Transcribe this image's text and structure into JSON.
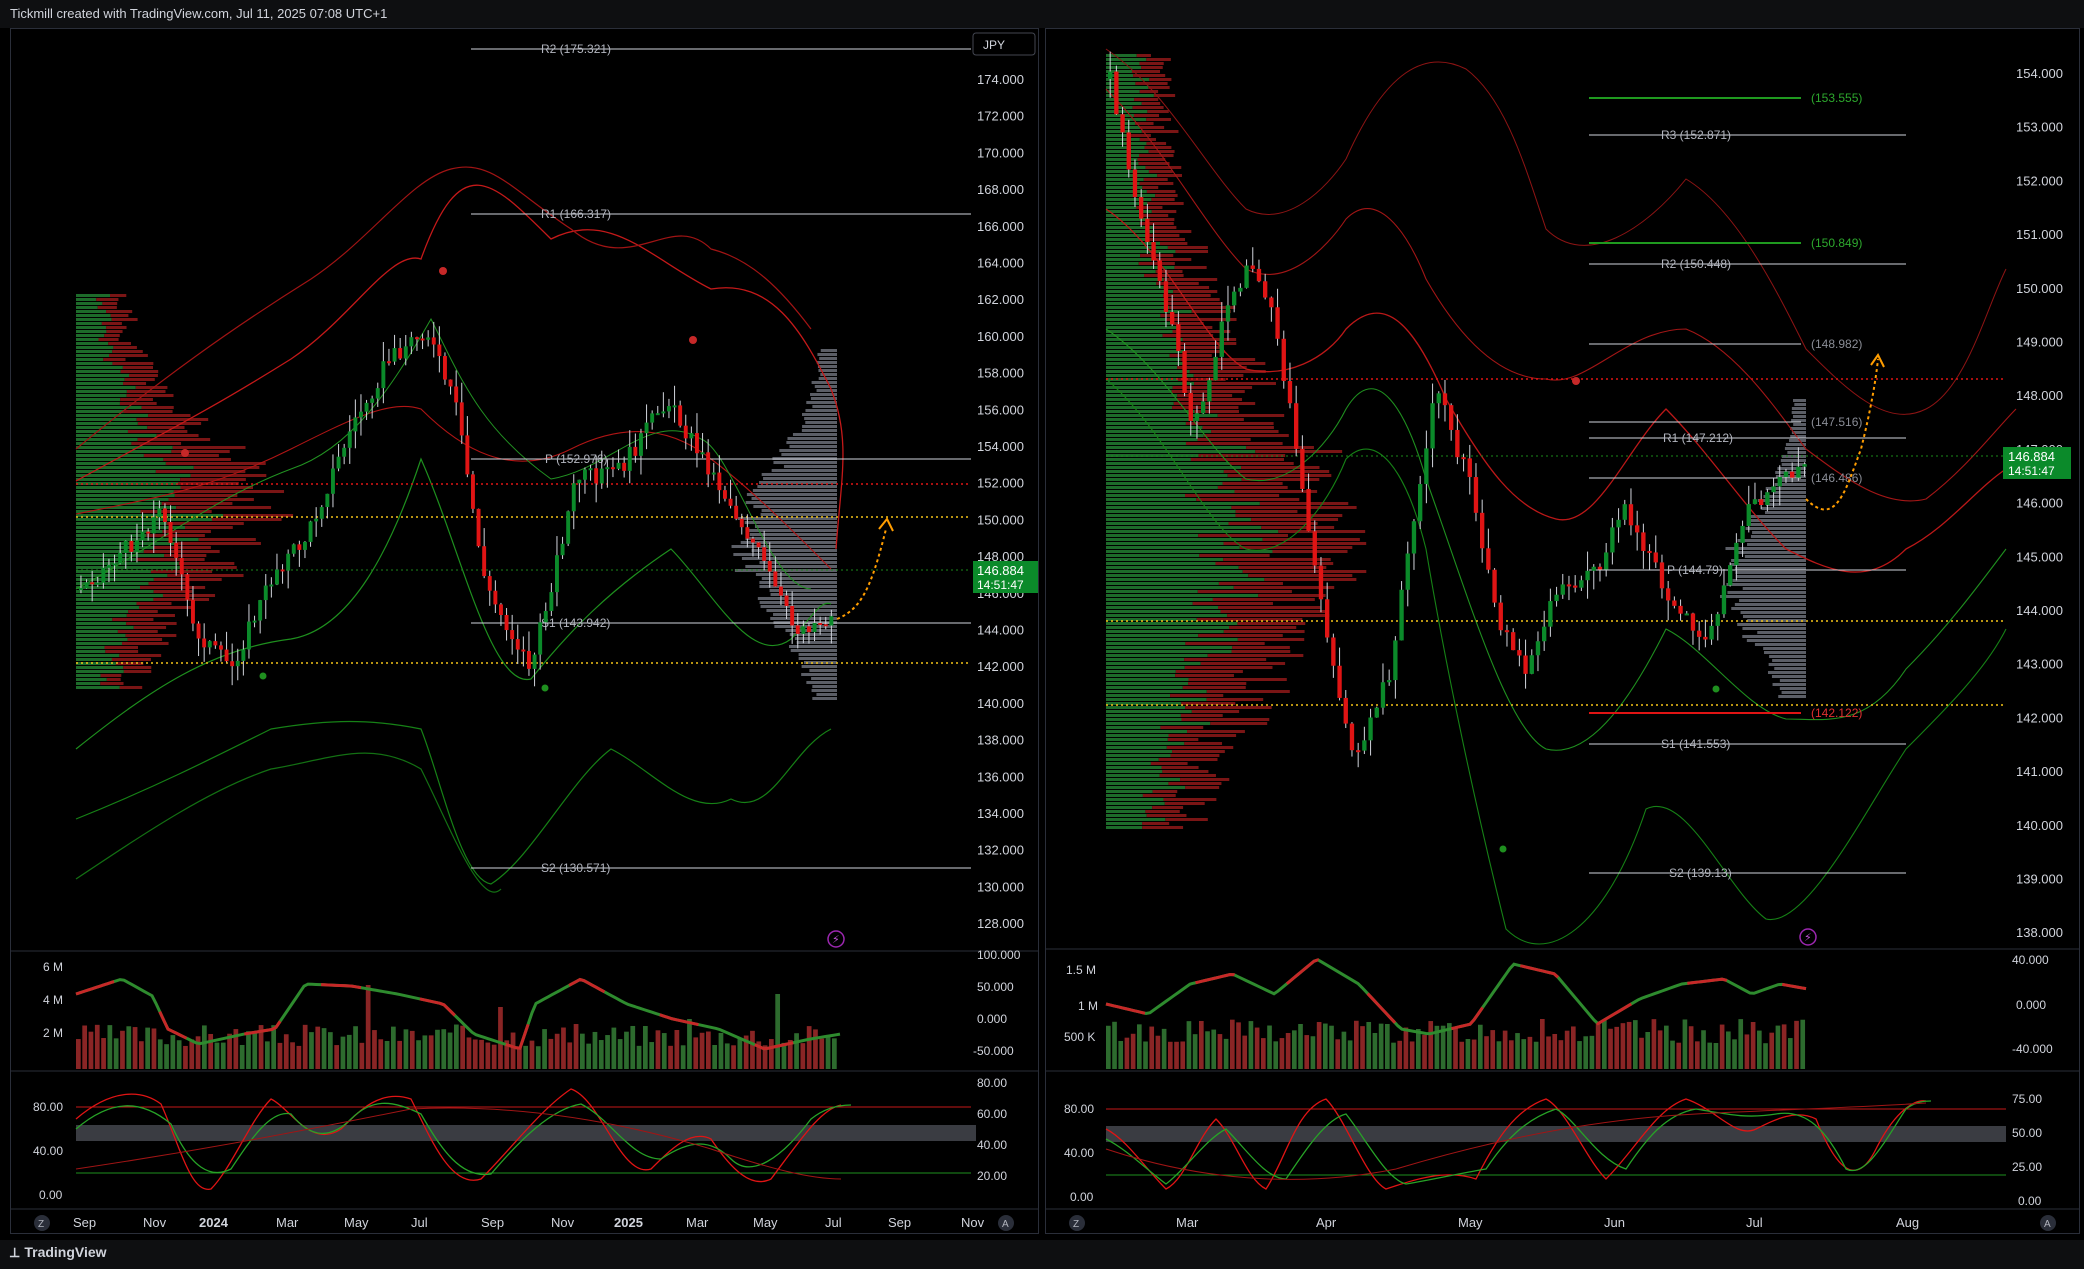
{
  "header": {
    "title": "Tickmill created with TradingView.com, Jul 11, 2025 07:08 UTC+1"
  },
  "footer": {
    "brand": "TradingView"
  },
  "colors": {
    "bull": "#0b8a2a",
    "bear": "#e01414",
    "pivot_line": "#d1d4dc",
    "dotted_red": "#e01414",
    "dotted_yellow": "#f5c518",
    "price_tag": "#0b8a2a",
    "projection": "#ff9d00"
  },
  "left_chart": {
    "currency": "JPY",
    "price_axis": [
      "174.000",
      "172.000",
      "170.000",
      "168.000",
      "166.000",
      "164.000",
      "162.000",
      "160.000",
      "158.000",
      "156.000",
      "154.000",
      "152.000",
      "150.000",
      "148.000",
      "146.000",
      "144.000",
      "142.000",
      "140.000",
      "138.000",
      "136.000",
      "134.000",
      "132.000",
      "130.000",
      "128.000"
    ],
    "current_price": "146.884",
    "countdown": "14:51:47",
    "pivots": [
      "R2 (175.321)",
      "R1 (166.317)",
      "P (152.976)",
      "S1 (143.942)",
      "S2 (130.571)"
    ],
    "volume_axis": [
      "6 M",
      "4 M",
      "2 M"
    ],
    "volume_osc_axis": [
      "100.000",
      "50.000",
      "0.000",
      "-50.000"
    ],
    "stoch_axis_left": [
      "80.00",
      "40.00",
      "0.00"
    ],
    "stoch_axis_right": [
      "80.00",
      "60.00",
      "40.00",
      "20.00"
    ],
    "time_axis": [
      "Sep",
      "Nov",
      "2024",
      "Mar",
      "May",
      "Jul",
      "Sep",
      "Nov",
      "2025",
      "Mar",
      "May",
      "Jul",
      "Sep",
      "Nov"
    ]
  },
  "right_chart": {
    "price_axis": [
      "154.000",
      "153.000",
      "152.000",
      "151.000",
      "150.000",
      "149.000",
      "148.000",
      "147.000",
      "146.000",
      "145.000",
      "144.000",
      "143.000",
      "142.000",
      "141.000",
      "140.000",
      "139.000",
      "138.000"
    ],
    "current_price": "146.884",
    "countdown": "14:51:47",
    "pivots": [
      "R3 (152.871)",
      "R2 (150.448)",
      "R1 (147.212)",
      "P (144.79)",
      "S1 (141.553)",
      "S2 (139.13)"
    ],
    "fib_levels": [
      "(153.555)",
      "(150.849)",
      "(148.982)",
      "(147.516)",
      "(146.486)",
      "(142.122)"
    ],
    "volume_axis": [
      "1.5 M",
      "1 M",
      "500 K"
    ],
    "volume_osc_axis": [
      "40.000",
      "0.000",
      "-40.000"
    ],
    "stoch_axis_left": [
      "80.00",
      "40.00",
      "0.00"
    ],
    "stoch_axis_right": [
      "75.00",
      "50.00",
      "25.00",
      "0.00"
    ],
    "time_axis": [
      "Mar",
      "Apr",
      "May",
      "Jun",
      "Jul",
      "Aug"
    ]
  }
}
